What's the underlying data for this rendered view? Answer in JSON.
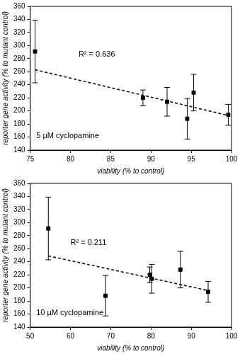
{
  "chart_data": [
    {
      "type": "scatter",
      "x_label": "viability (% to control)",
      "y_label": "reporter gene activity (% to mutant control)",
      "annotations": [
        "R² = 0.636",
        "5 µM cyclopamine"
      ],
      "x": [
        75.6,
        89.0,
        92.0,
        94.5,
        95.3,
        99.6
      ],
      "values": [
        291,
        220,
        214,
        188,
        228,
        194
      ],
      "errors": [
        48,
        12,
        22,
        31,
        28,
        16
      ],
      "color": "#000000",
      "marker": "square",
      "trend": {
        "x": [
          75.6,
          99.6
        ],
        "values": [
          263,
          193
        ],
        "line_style": "dashed"
      },
      "xlim": [
        75,
        100
      ],
      "xticks": [
        75,
        80,
        85,
        90,
        95,
        100
      ],
      "ylim": [
        140,
        360
      ],
      "yticks": [
        140,
        160,
        180,
        200,
        220,
        240,
        260,
        280,
        300,
        320,
        340,
        360
      ],
      "grid": false
    },
    {
      "type": "scatter",
      "x_label": "viability (% to control)",
      "y_label": "reporter gene activity (% to mutant control)",
      "annotations": [
        "R² = 0.211",
        "10 µM cyclopamine"
      ],
      "x": [
        54.5,
        68.7,
        79.7,
        80.2,
        87.3,
        94.2
      ],
      "values": [
        291,
        188,
        220,
        214,
        228,
        194
      ],
      "errors": [
        48,
        31,
        12,
        22,
        28,
        16
      ],
      "color": "#000000",
      "marker": "square",
      "trend": {
        "x": [
          54.5,
          94.2
        ],
        "values": [
          249,
          196
        ],
        "line_style": "dashed"
      },
      "xlim": [
        50,
        100
      ],
      "xticks": [
        50,
        60,
        70,
        80,
        90,
        100
      ],
      "ylim": [
        140,
        360
      ],
      "yticks": [
        140,
        160,
        180,
        200,
        220,
        240,
        260,
        280,
        300,
        320,
        340,
        360
      ],
      "grid": false
    }
  ]
}
